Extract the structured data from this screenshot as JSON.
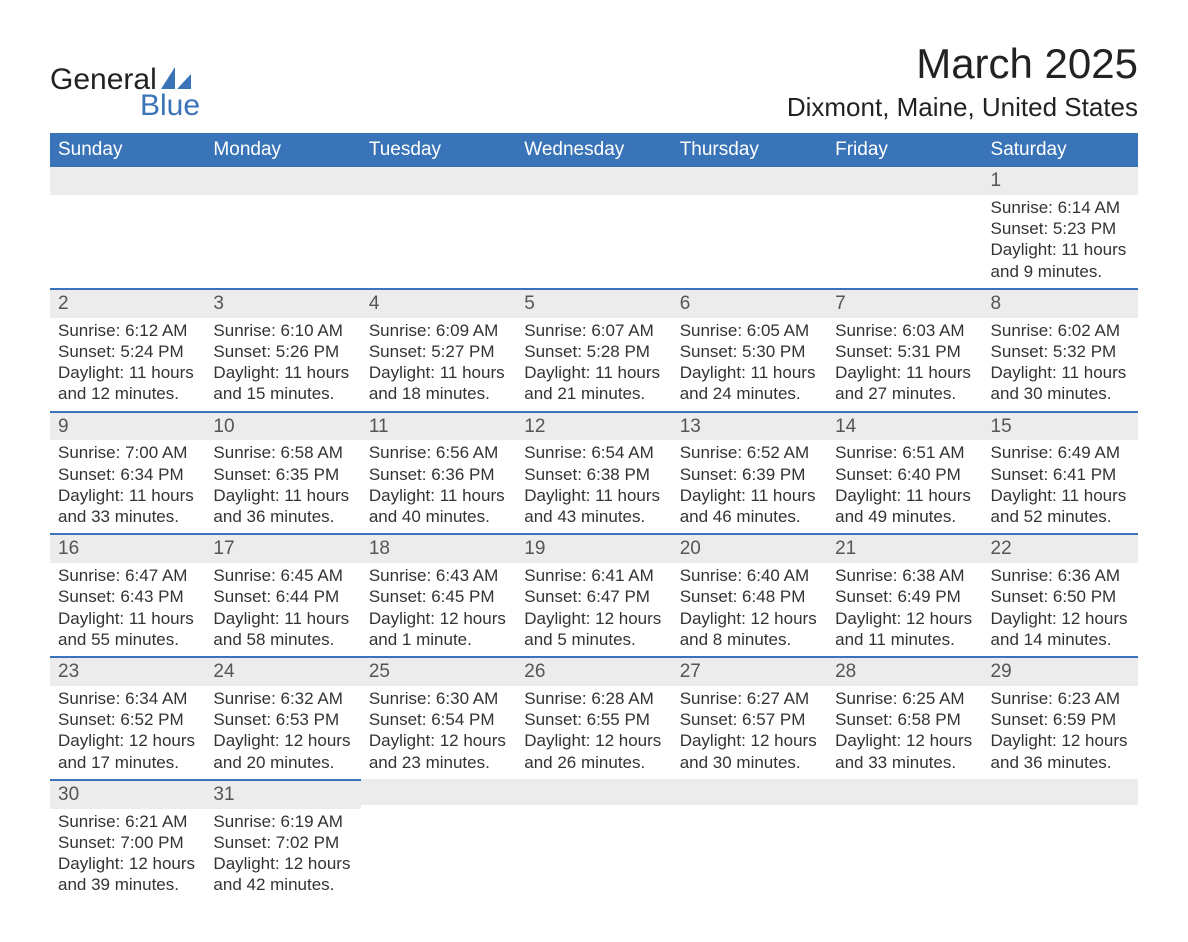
{
  "logo": {
    "part1": "General",
    "part2": "Blue",
    "sail_color": "#3a74b8"
  },
  "title": "March 2025",
  "location": "Dixmont, Maine, United States",
  "colors": {
    "header_bg": "#3a74b8",
    "header_text": "#ffffff",
    "daynum_bg": "#ececec",
    "row_border": "#3a74b8",
    "body_text": "#333333"
  },
  "day_headers": [
    "Sunday",
    "Monday",
    "Tuesday",
    "Wednesday",
    "Thursday",
    "Friday",
    "Saturday"
  ],
  "weeks": [
    [
      null,
      null,
      null,
      null,
      null,
      null,
      {
        "n": "1",
        "sr": "Sunrise: 6:14 AM",
        "ss": "Sunset: 5:23 PM",
        "dl1": "Daylight: 11 hours",
        "dl2": "and 9 minutes."
      }
    ],
    [
      {
        "n": "2",
        "sr": "Sunrise: 6:12 AM",
        "ss": "Sunset: 5:24 PM",
        "dl1": "Daylight: 11 hours",
        "dl2": "and 12 minutes."
      },
      {
        "n": "3",
        "sr": "Sunrise: 6:10 AM",
        "ss": "Sunset: 5:26 PM",
        "dl1": "Daylight: 11 hours",
        "dl2": "and 15 minutes."
      },
      {
        "n": "4",
        "sr": "Sunrise: 6:09 AM",
        "ss": "Sunset: 5:27 PM",
        "dl1": "Daylight: 11 hours",
        "dl2": "and 18 minutes."
      },
      {
        "n": "5",
        "sr": "Sunrise: 6:07 AM",
        "ss": "Sunset: 5:28 PM",
        "dl1": "Daylight: 11 hours",
        "dl2": "and 21 minutes."
      },
      {
        "n": "6",
        "sr": "Sunrise: 6:05 AM",
        "ss": "Sunset: 5:30 PM",
        "dl1": "Daylight: 11 hours",
        "dl2": "and 24 minutes."
      },
      {
        "n": "7",
        "sr": "Sunrise: 6:03 AM",
        "ss": "Sunset: 5:31 PM",
        "dl1": "Daylight: 11 hours",
        "dl2": "and 27 minutes."
      },
      {
        "n": "8",
        "sr": "Sunrise: 6:02 AM",
        "ss": "Sunset: 5:32 PM",
        "dl1": "Daylight: 11 hours",
        "dl2": "and 30 minutes."
      }
    ],
    [
      {
        "n": "9",
        "sr": "Sunrise: 7:00 AM",
        "ss": "Sunset: 6:34 PM",
        "dl1": "Daylight: 11 hours",
        "dl2": "and 33 minutes."
      },
      {
        "n": "10",
        "sr": "Sunrise: 6:58 AM",
        "ss": "Sunset: 6:35 PM",
        "dl1": "Daylight: 11 hours",
        "dl2": "and 36 minutes."
      },
      {
        "n": "11",
        "sr": "Sunrise: 6:56 AM",
        "ss": "Sunset: 6:36 PM",
        "dl1": "Daylight: 11 hours",
        "dl2": "and 40 minutes."
      },
      {
        "n": "12",
        "sr": "Sunrise: 6:54 AM",
        "ss": "Sunset: 6:38 PM",
        "dl1": "Daylight: 11 hours",
        "dl2": "and 43 minutes."
      },
      {
        "n": "13",
        "sr": "Sunrise: 6:52 AM",
        "ss": "Sunset: 6:39 PM",
        "dl1": "Daylight: 11 hours",
        "dl2": "and 46 minutes."
      },
      {
        "n": "14",
        "sr": "Sunrise: 6:51 AM",
        "ss": "Sunset: 6:40 PM",
        "dl1": "Daylight: 11 hours",
        "dl2": "and 49 minutes."
      },
      {
        "n": "15",
        "sr": "Sunrise: 6:49 AM",
        "ss": "Sunset: 6:41 PM",
        "dl1": "Daylight: 11 hours",
        "dl2": "and 52 minutes."
      }
    ],
    [
      {
        "n": "16",
        "sr": "Sunrise: 6:47 AM",
        "ss": "Sunset: 6:43 PM",
        "dl1": "Daylight: 11 hours",
        "dl2": "and 55 minutes."
      },
      {
        "n": "17",
        "sr": "Sunrise: 6:45 AM",
        "ss": "Sunset: 6:44 PM",
        "dl1": "Daylight: 11 hours",
        "dl2": "and 58 minutes."
      },
      {
        "n": "18",
        "sr": "Sunrise: 6:43 AM",
        "ss": "Sunset: 6:45 PM",
        "dl1": "Daylight: 12 hours",
        "dl2": "and 1 minute."
      },
      {
        "n": "19",
        "sr": "Sunrise: 6:41 AM",
        "ss": "Sunset: 6:47 PM",
        "dl1": "Daylight: 12 hours",
        "dl2": "and 5 minutes."
      },
      {
        "n": "20",
        "sr": "Sunrise: 6:40 AM",
        "ss": "Sunset: 6:48 PM",
        "dl1": "Daylight: 12 hours",
        "dl2": "and 8 minutes."
      },
      {
        "n": "21",
        "sr": "Sunrise: 6:38 AM",
        "ss": "Sunset: 6:49 PM",
        "dl1": "Daylight: 12 hours",
        "dl2": "and 11 minutes."
      },
      {
        "n": "22",
        "sr": "Sunrise: 6:36 AM",
        "ss": "Sunset: 6:50 PM",
        "dl1": "Daylight: 12 hours",
        "dl2": "and 14 minutes."
      }
    ],
    [
      {
        "n": "23",
        "sr": "Sunrise: 6:34 AM",
        "ss": "Sunset: 6:52 PM",
        "dl1": "Daylight: 12 hours",
        "dl2": "and 17 minutes."
      },
      {
        "n": "24",
        "sr": "Sunrise: 6:32 AM",
        "ss": "Sunset: 6:53 PM",
        "dl1": "Daylight: 12 hours",
        "dl2": "and 20 minutes."
      },
      {
        "n": "25",
        "sr": "Sunrise: 6:30 AM",
        "ss": "Sunset: 6:54 PM",
        "dl1": "Daylight: 12 hours",
        "dl2": "and 23 minutes."
      },
      {
        "n": "26",
        "sr": "Sunrise: 6:28 AM",
        "ss": "Sunset: 6:55 PM",
        "dl1": "Daylight: 12 hours",
        "dl2": "and 26 minutes."
      },
      {
        "n": "27",
        "sr": "Sunrise: 6:27 AM",
        "ss": "Sunset: 6:57 PM",
        "dl1": "Daylight: 12 hours",
        "dl2": "and 30 minutes."
      },
      {
        "n": "28",
        "sr": "Sunrise: 6:25 AM",
        "ss": "Sunset: 6:58 PM",
        "dl1": "Daylight: 12 hours",
        "dl2": "and 33 minutes."
      },
      {
        "n": "29",
        "sr": "Sunrise: 6:23 AM",
        "ss": "Sunset: 6:59 PM",
        "dl1": "Daylight: 12 hours",
        "dl2": "and 36 minutes."
      }
    ],
    [
      {
        "n": "30",
        "sr": "Sunrise: 6:21 AM",
        "ss": "Sunset: 7:00 PM",
        "dl1": "Daylight: 12 hours",
        "dl2": "and 39 minutes."
      },
      {
        "n": "31",
        "sr": "Sunrise: 6:19 AM",
        "ss": "Sunset: 7:02 PM",
        "dl1": "Daylight: 12 hours",
        "dl2": "and 42 minutes."
      },
      null,
      null,
      null,
      null,
      null
    ]
  ]
}
